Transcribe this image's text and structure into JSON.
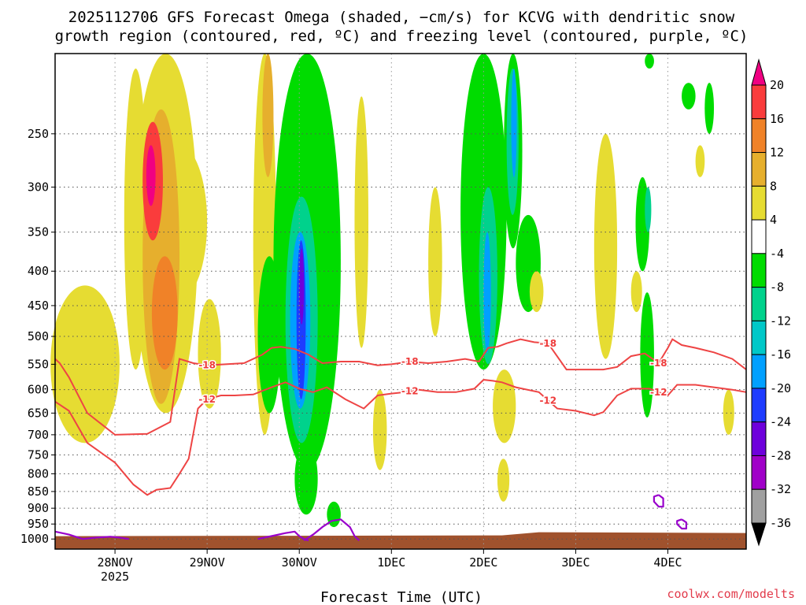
{
  "title": {
    "line1": "2025112706 GFS Forecast Omega (shaded, −cm/s) for KCVG with dendritic snow",
    "line2": "growth region (contoured, red, ºC) and freezing level (contoured, purple, ºC)"
  },
  "credit": "coolwx.com/modelts",
  "colors": {
    "dendritic_contour": "#ee4444",
    "freezing_contour": "#9900cc",
    "ground": "#a0522d"
  },
  "chart_data": {
    "type": "heatmap",
    "title": "2025112706 GFS Forecast Omega (shaded, −cm/s) for KCVG with dendritic snow growth region (contoured, red, ºC) and freezing level (contoured, purple, ºC)",
    "xlabel": "Forecast Time (UTC)",
    "ylabel": "",
    "x_range_days": [
      -0.65,
      6.85
    ],
    "x_ticks": [
      {
        "day": 0,
        "label": "28NOV",
        "sublabel": "2025"
      },
      {
        "day": 1,
        "label": "29NOV"
      },
      {
        "day": 2,
        "label": "30NOV"
      },
      {
        "day": 3,
        "label": "1DEC"
      },
      {
        "day": 4,
        "label": "2DEC"
      },
      {
        "day": 5,
        "label": "3DEC"
      },
      {
        "day": 6,
        "label": "4DEC"
      }
    ],
    "y_axis": {
      "scale": "log",
      "reversed": true,
      "range_hpa": [
        190,
        1035
      ],
      "ticks": [
        250,
        300,
        350,
        400,
        450,
        500,
        550,
        600,
        650,
        700,
        750,
        800,
        850,
        900,
        950,
        1000
      ]
    },
    "colorbar": {
      "levels": [
        -36,
        -32,
        -28,
        -24,
        -20,
        -16,
        -12,
        -8,
        -4,
        4,
        8,
        12,
        16,
        20
      ],
      "colors": [
        "#000000",
        "#a0a0a0",
        "#a000c8",
        "#6e00dc",
        "#1e3cff",
        "#00a0ff",
        "#00c8c8",
        "#00d28c",
        "#00dc00",
        "#ffffff",
        "#e6dc32",
        "#e6af2d",
        "#f08228",
        "#fa3c3c",
        "#f00082"
      ]
    },
    "omega_regions": [
      {
        "t0": -0.7,
        "t1": 0.05,
        "p0": 420,
        "p1": 720,
        "cls": 5
      },
      {
        "t0": 0.1,
        "t1": 0.35,
        "p0": 200,
        "p1": 560,
        "cls": 5
      },
      {
        "t0": 0.2,
        "t1": 0.9,
        "p0": 190,
        "p1": 650,
        "cls": 5
      },
      {
        "t0": 0.4,
        "t1": 1.0,
        "p0": 260,
        "p1": 440,
        "cls": 5
      },
      {
        "t0": 0.3,
        "t1": 0.7,
        "p0": 230,
        "p1": 630,
        "cls": 6
      },
      {
        "t0": 0.4,
        "t1": 0.68,
        "p0": 380,
        "p1": 560,
        "cls": 7
      },
      {
        "t0": 0.3,
        "t1": 0.52,
        "p0": 240,
        "p1": 360,
        "cls": 8
      },
      {
        "t0": 0.34,
        "t1": 0.44,
        "p0": 260,
        "p1": 320,
        "cls": 9
      },
      {
        "t0": 0.9,
        "t1": 1.15,
        "p0": 440,
        "p1": 640,
        "cls": 5
      },
      {
        "t0": 1.5,
        "t1": 1.75,
        "p0": 190,
        "p1": 700,
        "cls": 5
      },
      {
        "t0": 1.6,
        "t1": 1.72,
        "p0": 190,
        "p1": 290,
        "cls": 6
      },
      {
        "t0": 1.55,
        "t1": 1.8,
        "p0": 380,
        "p1": 650,
        "cls": 4
      },
      {
        "t0": 1.72,
        "t1": 2.45,
        "p0": 190,
        "p1": 790,
        "cls": 4
      },
      {
        "t0": 1.95,
        "t1": 2.2,
        "p0": 720,
        "p1": 920,
        "cls": 4
      },
      {
        "t0": 1.85,
        "t1": 2.2,
        "p0": 310,
        "p1": 720,
        "cls": 3
      },
      {
        "t0": 1.9,
        "t1": 2.12,
        "p0": 350,
        "p1": 640,
        "cls": 2
      },
      {
        "t0": 1.97,
        "t1": 2.07,
        "p0": 360,
        "p1": 620,
        "cls": 1
      },
      {
        "t0": 2.0,
        "t1": 2.05,
        "p0": 370,
        "p1": 480,
        "cls": 0
      },
      {
        "t0": 2.3,
        "t1": 2.45,
        "p0": 880,
        "p1": 960,
        "cls": 4
      },
      {
        "t0": 2.6,
        "t1": 2.75,
        "p0": 220,
        "p1": 520,
        "cls": 5
      },
      {
        "t0": 2.8,
        "t1": 2.95,
        "p0": 600,
        "p1": 790,
        "cls": 5
      },
      {
        "t0": 3.4,
        "t1": 3.55,
        "p0": 300,
        "p1": 500,
        "cls": 5
      },
      {
        "t0": 3.75,
        "t1": 4.25,
        "p0": 190,
        "p1": 560,
        "cls": 4
      },
      {
        "t0": 3.95,
        "t1": 4.15,
        "p0": 300,
        "p1": 550,
        "cls": 3
      },
      {
        "t0": 4.0,
        "t1": 4.08,
        "p0": 350,
        "p1": 530,
        "cls": 2
      },
      {
        "t0": 4.22,
        "t1": 4.42,
        "p0": 190,
        "p1": 370,
        "cls": 4
      },
      {
        "t0": 4.25,
        "t1": 4.38,
        "p0": 200,
        "p1": 330,
        "cls": 3
      },
      {
        "t0": 4.3,
        "t1": 4.36,
        "p0": 200,
        "p1": 290,
        "cls": 2
      },
      {
        "t0": 4.35,
        "t1": 4.62,
        "p0": 330,
        "p1": 460,
        "cls": 4
      },
      {
        "t0": 4.1,
        "t1": 4.35,
        "p0": 560,
        "p1": 720,
        "cls": 5
      },
      {
        "t0": 4.15,
        "t1": 4.28,
        "p0": 760,
        "p1": 880,
        "cls": 5
      },
      {
        "t0": 4.5,
        "t1": 4.65,
        "p0": 400,
        "p1": 460,
        "cls": 5
      },
      {
        "t0": 5.2,
        "t1": 5.45,
        "p0": 250,
        "p1": 540,
        "cls": 5
      },
      {
        "t0": 5.65,
        "t1": 5.8,
        "p0": 290,
        "p1": 400,
        "cls": 4
      },
      {
        "t0": 5.7,
        "t1": 5.85,
        "p0": 430,
        "p1": 660,
        "cls": 4
      },
      {
        "t0": 5.75,
        "t1": 5.82,
        "p0": 300,
        "p1": 350,
        "cls": 3
      },
      {
        "t0": 5.6,
        "t1": 5.72,
        "p0": 400,
        "p1": 460,
        "cls": 5
      },
      {
        "t0": 6.15,
        "t1": 6.3,
        "p0": 210,
        "p1": 230,
        "cls": 4
      },
      {
        "t0": 5.75,
        "t1": 5.85,
        "p0": 190,
        "p1": 200,
        "cls": 4
      },
      {
        "t0": 6.4,
        "t1": 6.5,
        "p0": 210,
        "p1": 250,
        "cls": 4
      },
      {
        "t0": 6.3,
        "t1": 6.4,
        "p0": 260,
        "p1": 290,
        "cls": 5
      },
      {
        "t0": 6.6,
        "t1": 6.72,
        "p0": 600,
        "p1": 700,
        "cls": 5
      }
    ],
    "dendritic_growth_contours": [
      {
        "label": "-18",
        "t": [
          -0.65,
          -0.6,
          -0.5,
          -0.3,
          0.0,
          0.35,
          0.6,
          0.7,
          0.85,
          1.0,
          1.2,
          1.4,
          1.6,
          1.7,
          1.8,
          1.95,
          2.1,
          2.25,
          2.45,
          2.65,
          2.85,
          3.0,
          3.2,
          3.4,
          3.6,
          3.8,
          3.95,
          4.05,
          4.15,
          4.25,
          4.4,
          4.55,
          4.7,
          4.9,
          5.1,
          5.3,
          5.45,
          5.6,
          5.75,
          5.9,
          6.0,
          6.05,
          6.15,
          6.3,
          6.5,
          6.7,
          6.85
        ],
        "p": [
          540,
          548,
          575,
          650,
          700,
          698,
          670,
          540,
          548,
          552,
          550,
          548,
          532,
          520,
          518,
          522,
          532,
          548,
          545,
          545,
          552,
          550,
          545,
          548,
          545,
          540,
          545,
          520,
          518,
          512,
          505,
          510,
          512,
          560,
          560,
          560,
          555,
          535,
          530,
          548,
          520,
          505,
          515,
          520,
          528,
          540,
          560
        ]
      },
      {
        "label": "-12",
        "t": [
          -0.65,
          -0.5,
          -0.3,
          0.0,
          0.2,
          0.35,
          0.45,
          0.6,
          0.7,
          0.8,
          0.9,
          1.0,
          1.15,
          1.3,
          1.5,
          1.7,
          1.85,
          2.0,
          2.15,
          2.3,
          2.5,
          2.7,
          2.85,
          3.0,
          3.15,
          3.3,
          3.5,
          3.7,
          3.9,
          4.0,
          4.1,
          4.2,
          4.35,
          4.6,
          4.8,
          5.0,
          5.2,
          5.3,
          5.45,
          5.6,
          5.8,
          6.0,
          6.1,
          6.3,
          6.5,
          6.7,
          6.85
        ],
        "p": [
          625,
          645,
          720,
          770,
          830,
          860,
          845,
          840,
          800,
          760,
          640,
          620,
          612,
          612,
          610,
          595,
          585,
          598,
          605,
          595,
          620,
          640,
          612,
          608,
          605,
          600,
          605,
          605,
          598,
          580,
          582,
          585,
          595,
          605,
          640,
          645,
          655,
          648,
          612,
          598,
          598,
          612,
          590,
          590,
          595,
          600,
          605
        ]
      }
    ],
    "freezing_level_contours": [
      {
        "label": "",
        "t": [
          -0.65,
          -0.5,
          -0.35,
          -0.2,
          -0.05,
          0.05,
          0.15
        ],
        "p": [
          975,
          985,
          1000,
          995,
          992,
          995,
          1000
        ]
      },
      {
        "label": "",
        "t": [
          1.55,
          1.7,
          1.85,
          1.95,
          2.0,
          2.05,
          2.1
        ],
        "p": [
          1000,
          990,
          980,
          975,
          990,
          1000,
          1005
        ]
      },
      {
        "label": "",
        "t": [
          2.05,
          2.15,
          2.25,
          2.35,
          2.45,
          2.55,
          2.6,
          2.65
        ],
        "p": [
          1005,
          985,
          960,
          940,
          935,
          960,
          990,
          1005
        ]
      },
      {
        "label": "",
        "t": [
          5.9,
          5.95,
          5.95,
          5.9,
          5.85,
          5.85,
          5.9
        ],
        "p": [
          860,
          870,
          895,
          895,
          880,
          865,
          860
        ]
      },
      {
        "label": "",
        "t": [
          6.15,
          6.2,
          6.2,
          6.15,
          6.1,
          6.1,
          6.15
        ],
        "p": [
          935,
          945,
          965,
          965,
          950,
          940,
          935
        ]
      }
    ],
    "surface_pressure_hpa": 985
  }
}
